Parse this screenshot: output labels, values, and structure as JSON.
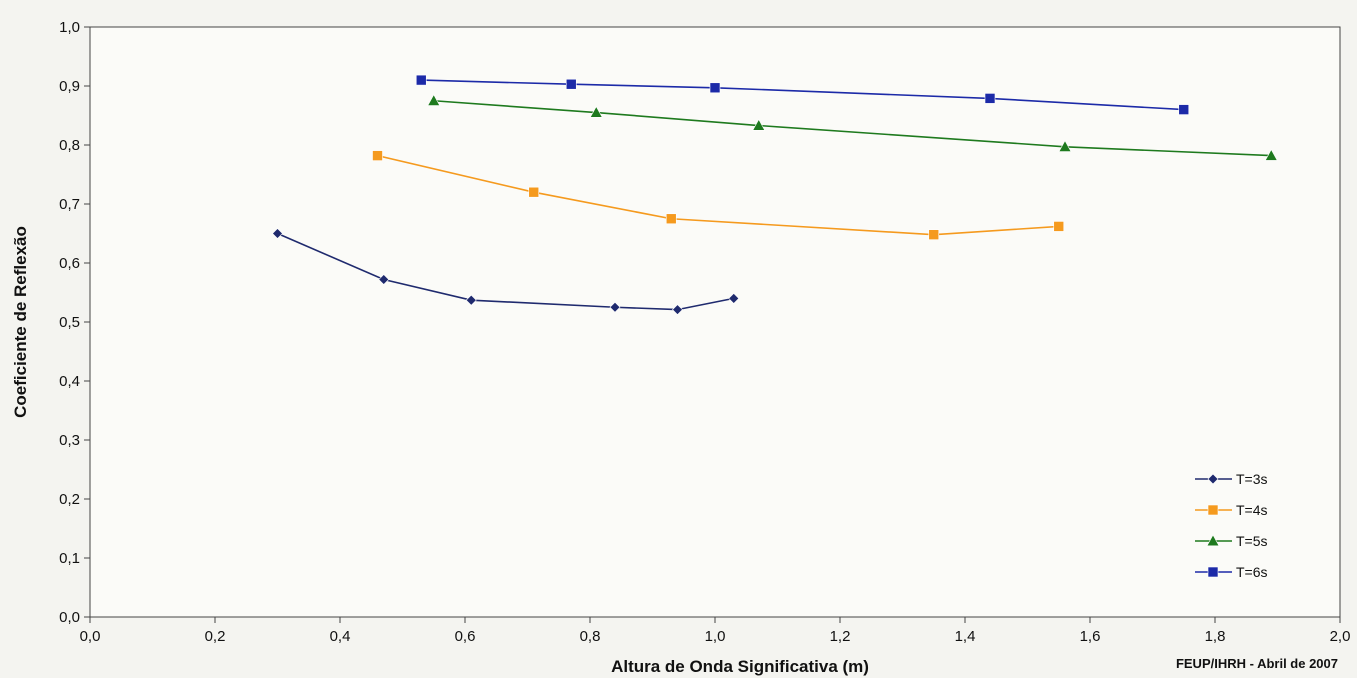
{
  "chart_data": {
    "type": "line",
    "title": "",
    "xlabel": "Altura de Onda Significativa (m)",
    "ylabel": "Coeficiente de Reflexão",
    "xlim": [
      0,
      2
    ],
    "ylim": [
      0,
      1
    ],
    "x_ticks": [
      "0,0",
      "0,2",
      "0,4",
      "0,6",
      "0,8",
      "1,0",
      "1,2",
      "1,4",
      "1,6",
      "1,8",
      "2,0"
    ],
    "y_ticks": [
      "0,0",
      "0,1",
      "0,2",
      "0,3",
      "0,4",
      "0,5",
      "0,6",
      "0,7",
      "0,8",
      "0,9",
      "1,0"
    ],
    "grid": false,
    "legend_position": "bottom-right",
    "credit": "FEUP/IHRH - Abril de 2007",
    "series": [
      {
        "name": "T=3s",
        "color": "#1f2a6e",
        "marker": "diamond",
        "x": [
          0.3,
          0.47,
          0.61,
          0.84,
          0.94,
          1.03
        ],
        "y": [
          0.65,
          0.572,
          0.537,
          0.525,
          0.521,
          0.54
        ]
      },
      {
        "name": "T=4s",
        "color": "#f59a1e",
        "marker": "square",
        "x": [
          0.46,
          0.71,
          0.93,
          1.35,
          1.55
        ],
        "y": [
          0.782,
          0.72,
          0.675,
          0.648,
          0.662
        ]
      },
      {
        "name": "T=5s",
        "color": "#1e7a1e",
        "marker": "triangle",
        "x": [
          0.55,
          0.81,
          1.07,
          1.56,
          1.89
        ],
        "y": [
          0.875,
          0.855,
          0.833,
          0.797,
          0.782
        ]
      },
      {
        "name": "T=6s",
        "color": "#1c2aa8",
        "marker": "square",
        "x": [
          0.53,
          0.77,
          1.0,
          1.44,
          1.75
        ],
        "y": [
          0.91,
          0.903,
          0.897,
          0.879,
          0.86
        ]
      }
    ]
  }
}
